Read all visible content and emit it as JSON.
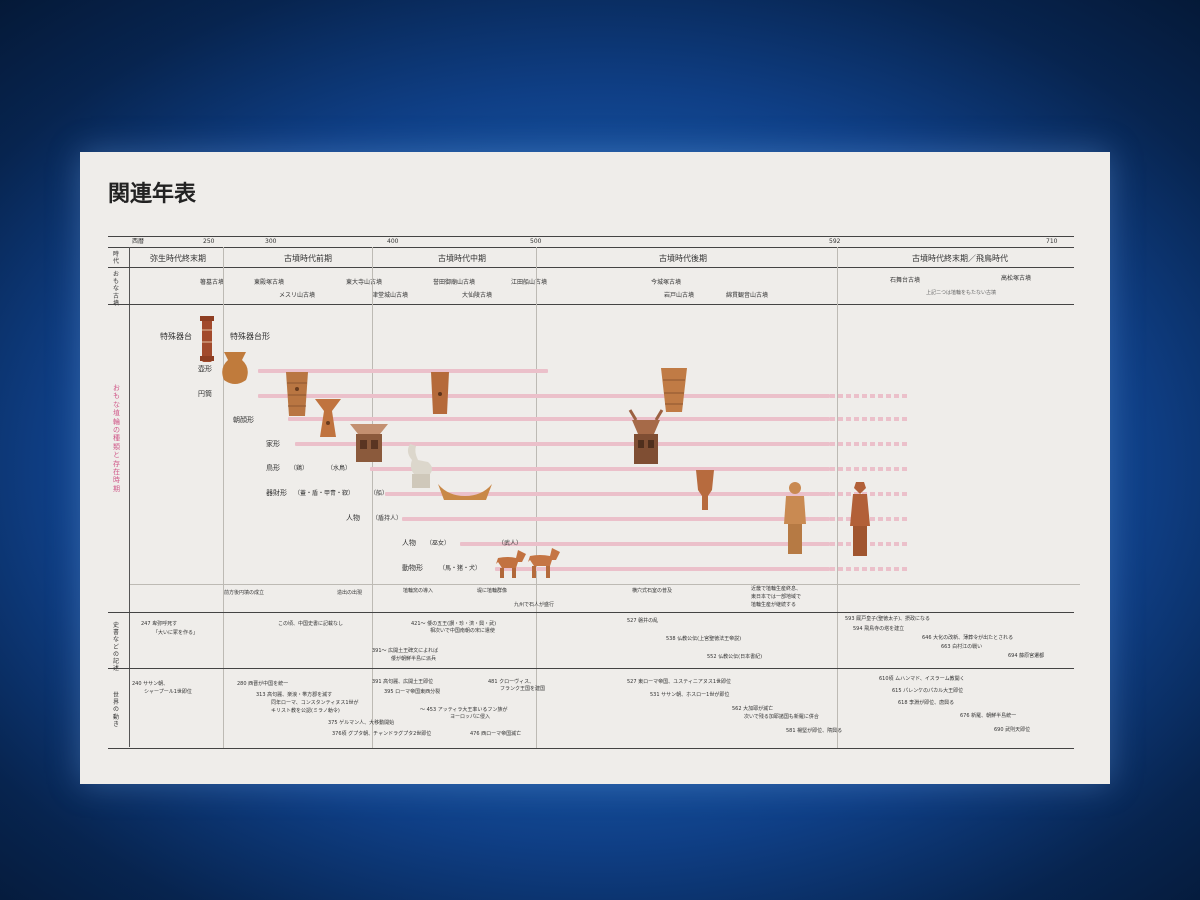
{
  "title": "関連年表",
  "years": [
    "西暦",
    "250",
    "300",
    "400",
    "500",
    "592",
    "710"
  ],
  "period_label": "時代",
  "periods": [
    "弥生時代終末期",
    "古墳時代前期",
    "古墳時代中期",
    "古墳時代後期",
    "古墳時代終末期／飛鳥時代"
  ],
  "tombs_label": "おもな古墳",
  "tombs": [
    "箸墓古墳",
    "東殿塚古墳",
    "メスリ山古墳",
    "東大寺山古墳",
    "津堂城山古墳",
    "誉田御廟山古墳",
    "大仙陵古墳",
    "江田船山古墳",
    "今城塚古墳",
    "岩戸山古墳",
    "綿貫観音山古墳",
    "石舞台古墳",
    "高松塚古墳",
    "上記二つは埴輪をもたない古墳"
  ],
  "haniwa_label": "おもな埴輪の種類と存在時期",
  "haniwa_types": [
    "特殊器台",
    "特殊器台形",
    "壺形",
    "円筒",
    "朝顔形",
    "家形",
    "鳥形",
    "（鶏）",
    "（水鳥）",
    "器財形",
    "（蓋・盾・甲冑・靫）",
    "（船）",
    "人物",
    "（盾持人）",
    "人物",
    "（巫女）",
    "（武人）",
    "動物形",
    "（馬・猪・犬）"
  ],
  "haniwa_notes": [
    "前方後円墳の成立",
    "造出の出現",
    "埴輪窯の導入",
    "堤に埴輪群像",
    "九州で石人が盛行",
    "横穴式石室の普及",
    "近畿で埴輪生産終息、",
    "東日本では一部地域で",
    "埴輪生産が継続する"
  ],
  "history_label": "史書などの記述",
  "history": [
    "247 卑弥呼死す",
    "「大いに冢を作る」",
    "この頃、中国史書に記載なし",
    "421～ 倭の五王(讃・珍・済・興・武)",
    "相次いで中国南朝の宋に遣使",
    "391～ 広開土王碑文によれば",
    "倭が朝鮮半島に派兵",
    "527 磐井の乱",
    "538 仏教公伝(上宮聖徳法王帝説)",
    "552 仏教公伝(日本書紀)",
    "593 厩戸皇子(聖徳太子)、摂政になる",
    "594 飛鳥寺の塔を建立",
    "646 大化の改新、薄葬令が出たとされる",
    "663 白村江の戦い",
    "694 藤原宮遷都"
  ],
  "world_label": "世界の動き",
  "world": [
    "240 ササン朝、",
    "シャープール1世即位",
    "280 西晋が中国を統一",
    "313 高句麗、楽浪・帯方郡を滅す",
    "同年ローマ、コンスタンティヌス1世が",
    "キリスト教を公認(ミラノ勅令)",
    "375 ゲルマン人、大移動開始",
    "376頃 グプタ朝、チャンドラグプタ2世即位",
    "391 高句麗、広開土王即位",
    "395 ローマ帝国東西分裂",
    "～ 453 アッティラ大王率いるフン族が",
    "ヨーロッパに侵入",
    "481 クローヴィス、",
    "フランク王国を建国",
    "476 西ローマ帝国滅亡",
    "527 東ローマ帝国、ユスティニアヌス1世即位",
    "531 ササン朝、ホスロー1世が即位",
    "562 大加耶が滅亡",
    "次いで残る加耶諸国も新羅に併合",
    "581 楊堅が即位、隋興る",
    "610頃 ムハンマド、イスラーム教開く",
    "615 パレンケのパカル大王即位",
    "618 李淵が即位、唐興る",
    "676 新羅、朝鮮半島統一",
    "690 武則天即位"
  ],
  "colors": {
    "accent": "#d05a8a",
    "bar": "#ebc0ca",
    "terracotta": "#b66a3e"
  }
}
